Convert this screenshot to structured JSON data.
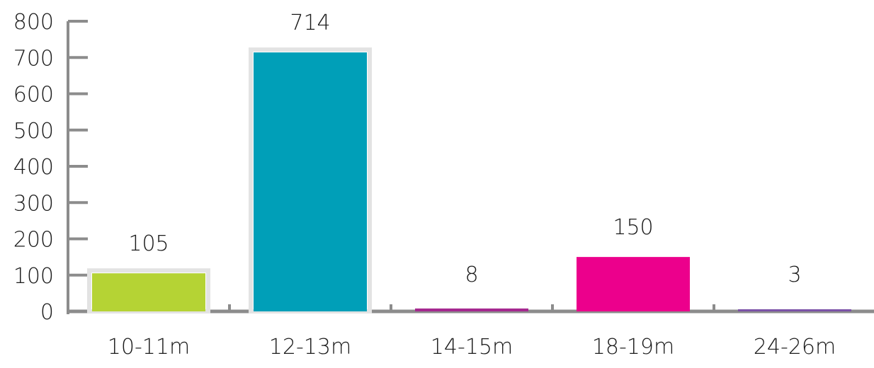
{
  "chart_data": {
    "type": "bar",
    "categories": [
      "10-11m",
      "12-13m",
      "14-15m",
      "18-19m",
      "24-26m"
    ],
    "values": [
      105,
      714,
      8,
      150,
      3
    ],
    "value_labels": [
      "105",
      "714",
      "8",
      "150",
      "3"
    ],
    "colors": [
      "#b5d334",
      "#009fb8",
      "#a5288f",
      "#ec008c",
      "#7b52a8"
    ],
    "highlighted": [
      true,
      true,
      false,
      false,
      false
    ],
    "title": "",
    "xlabel": "",
    "ylabel": "",
    "ylim": [
      0,
      800
    ],
    "yticks": [
      "0",
      "100",
      "200",
      "300",
      "400",
      "500",
      "600",
      "700",
      "800"
    ],
    "grid": false,
    "legend": "none",
    "axis_color": "#8c8c8c",
    "highlight_border_color": "#e3e3e3"
  }
}
